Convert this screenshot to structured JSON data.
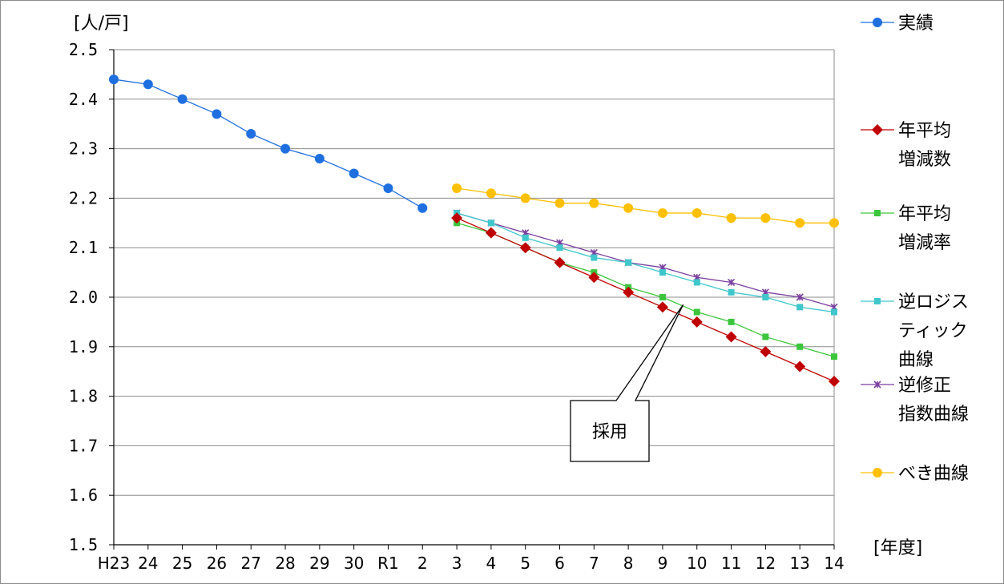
{
  "chart_data": {
    "type": "line",
    "ylabel": "[人/戸]",
    "xlabel": "[年度]",
    "categories": [
      "H23",
      "24",
      "25",
      "26",
      "27",
      "28",
      "29",
      "30",
      "R1",
      "2",
      "3",
      "4",
      "5",
      "6",
      "7",
      "8",
      "9",
      "10",
      "11",
      "12",
      "13",
      "14"
    ],
    "y_ticks": [
      "2.5",
      "2.4",
      "2.3",
      "2.2",
      "2.1",
      "2.0",
      "1.9",
      "1.8",
      "1.7",
      "1.6",
      "1.5"
    ],
    "ylim": [
      1.5,
      2.5
    ],
    "grid": true,
    "legend_position": "right",
    "series": [
      {
        "name": "実績",
        "label_lines": [
          "実績"
        ],
        "color": "#1f6fe0",
        "marker": "circle",
        "values": [
          2.44,
          2.43,
          2.4,
          2.37,
          2.33,
          2.3,
          2.28,
          2.25,
          2.22,
          2.18,
          null,
          null,
          null,
          null,
          null,
          null,
          null,
          null,
          null,
          null,
          null,
          null
        ]
      },
      {
        "name": "年平均増減数",
        "label_lines": [
          "年平均",
          "増減数"
        ],
        "color": "#c00000",
        "marker": "diamond",
        "values": [
          null,
          null,
          null,
          null,
          null,
          null,
          null,
          null,
          null,
          null,
          2.16,
          2.13,
          2.1,
          2.07,
          2.04,
          2.01,
          1.98,
          1.95,
          1.92,
          1.89,
          1.86,
          1.83
        ]
      },
      {
        "name": "年平均増減率",
        "label_lines": [
          "年平均",
          "増減率"
        ],
        "color": "#3cc63c",
        "marker": "square",
        "values": [
          null,
          null,
          null,
          null,
          null,
          null,
          null,
          null,
          null,
          null,
          2.15,
          2.13,
          2.1,
          2.07,
          2.05,
          2.02,
          2.0,
          1.97,
          1.95,
          1.92,
          1.9,
          1.88
        ]
      },
      {
        "name": "逆ロジスティック曲線",
        "label_lines": [
          "逆ロジス",
          "ティック",
          "曲線"
        ],
        "color": "#3fc7cc",
        "marker": "square",
        "values": [
          null,
          null,
          null,
          null,
          null,
          null,
          null,
          null,
          null,
          null,
          2.17,
          2.15,
          2.12,
          2.1,
          2.08,
          2.07,
          2.05,
          2.03,
          2.01,
          2.0,
          1.98,
          1.97
        ]
      },
      {
        "name": "逆修正指数曲線",
        "label_lines": [
          "逆修正",
          "指数曲線"
        ],
        "color": "#7b3fa0",
        "marker": "star",
        "values": [
          null,
          null,
          null,
          null,
          null,
          null,
          null,
          null,
          null,
          null,
          2.17,
          2.15,
          2.13,
          2.11,
          2.09,
          2.07,
          2.06,
          2.04,
          2.03,
          2.01,
          2.0,
          1.98
        ]
      },
      {
        "name": "べき曲線",
        "label_lines": [
          "べき曲線"
        ],
        "color": "#ffc000",
        "marker": "circle",
        "values": [
          null,
          null,
          null,
          null,
          null,
          null,
          null,
          null,
          null,
          null,
          2.22,
          2.21,
          2.2,
          2.19,
          2.19,
          2.18,
          2.17,
          2.17,
          2.16,
          2.16,
          2.15,
          2.15
        ]
      }
    ],
    "annotations": [
      {
        "text": "採用",
        "points_to_series": "年平均増減数"
      }
    ]
  }
}
